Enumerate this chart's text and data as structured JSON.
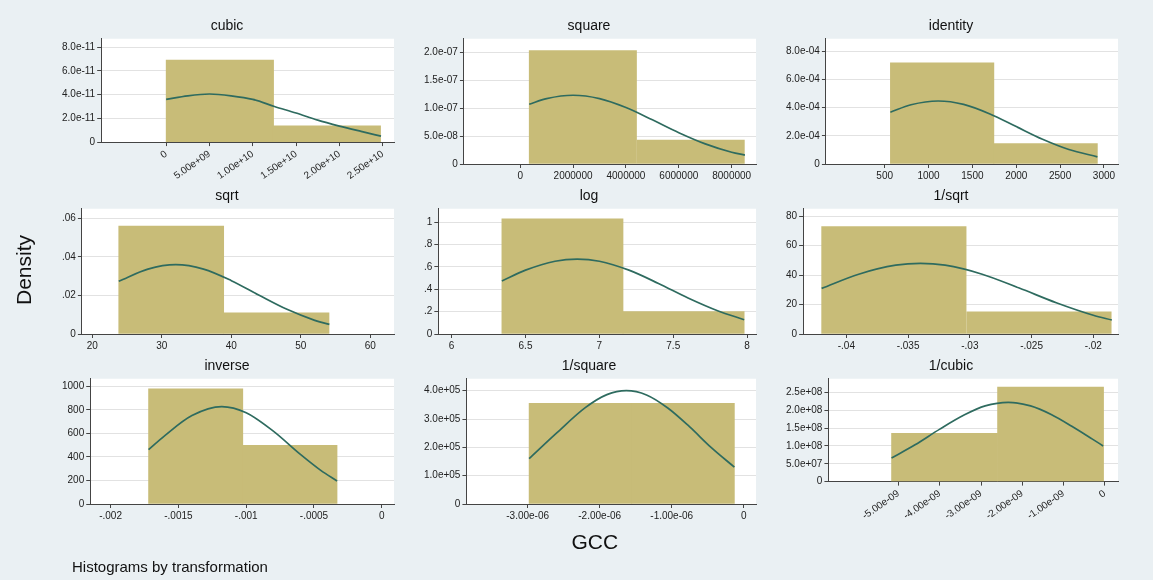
{
  "chart_data": [
    {
      "type": "histogram",
      "title": "cubic",
      "xlim": [
        -7500000000.0,
        26300000000.0
      ],
      "ylim": [
        0,
        8.7e-11
      ],
      "xticks": [
        0,
        {
          "value": 5000000000.0,
          "label": "5.00e+09"
        },
        {
          "value": 10000000000.0,
          "label": "1.00e+10"
        },
        {
          "value": 15000000000.0,
          "label": "1.50e+10"
        },
        {
          "value": 20000000000.0,
          "label": "2.00e+10"
        },
        {
          "value": 25000000000.0,
          "label": "2.50e+10"
        }
      ],
      "yticks": [
        0,
        {
          "value": 2e-11,
          "label": "2.0e-11"
        },
        {
          "value": 4e-11,
          "label": "4.0e-11"
        },
        {
          "value": 6e-11,
          "label": "6.0e-11"
        },
        {
          "value": 8e-11,
          "label": "8.0e-11"
        }
      ],
      "grid": "y",
      "series": [
        {
          "color": "#c8bc78",
          "bins": [
            0,
            12400000000.0,
            24700000000.0
          ],
          "values": [
            6.9e-11,
            1.37e-11
          ]
        },
        {
          "type": "line",
          "color": "#2e6b5f",
          "x": [
            0,
            2500000000.0,
            5000000000.0,
            7500000000.0,
            10000000000.0,
            12500000000.0,
            15000000000.0,
            17500000000.0,
            20000000000.0,
            22500000000.0,
            24800000000.0
          ],
          "values": [
            3.6e-11,
            3.9e-11,
            4.05e-11,
            3.9e-11,
            3.6e-11,
            3e-11,
            2.45e-11,
            1.85e-11,
            1.35e-11,
            9e-12,
            5e-12
          ]
        }
      ]
    },
    {
      "type": "histogram",
      "title": "square",
      "xlim": [
        -2130000.0,
        8920000.0
      ],
      "ylim": [
        0,
        2.24e-07
      ],
      "xticks": [
        0,
        2000000,
        4000000,
        6000000,
        8000000
      ],
      "yticks": [
        0,
        {
          "value": 5e-08,
          "label": "5.0e-08"
        },
        {
          "value": 1e-07,
          "label": "1.0e-07"
        },
        {
          "value": 1.5e-07,
          "label": "1.5e-07"
        },
        {
          "value": 2e-07,
          "label": "2.0e-07"
        }
      ],
      "grid": "y",
      "series": [
        {
          "color": "#c8bc78",
          "bins": [
            340000,
            4400000,
            8500000
          ],
          "values": [
            2.03e-07,
            4.3e-08
          ]
        },
        {
          "type": "line",
          "color": "#2e6b5f",
          "x": [
            340000,
            1000000,
            2000000,
            3000000,
            4000000,
            5000000,
            6000000,
            7000000,
            8000000,
            8500000
          ],
          "values": [
            1.07e-07,
            1.17e-07,
            1.23e-07,
            1.17e-07,
            1.01e-07,
            7.9e-08,
            5.6e-08,
            3.6e-08,
            2.1e-08,
            1.6e-08
          ]
        }
      ]
    },
    {
      "type": "histogram",
      "title": "identity",
      "xlim": [
        -170,
        3160
      ],
      "ylim": [
        0,
        0.00089
      ],
      "xticks": [
        500,
        1000,
        1500,
        2000,
        2500,
        3000
      ],
      "yticks": [
        0,
        {
          "value": 0.0002,
          "label": "2.0e-04"
        },
        {
          "value": 0.0004,
          "label": "4.0e-04"
        },
        {
          "value": 0.0006,
          "label": "6.0e-04"
        },
        {
          "value": 0.0008,
          "label": "8.0e-04"
        }
      ],
      "grid": "y",
      "series": [
        {
          "color": "#c8bc78",
          "bins": [
            565,
            1745,
            2925
          ],
          "values": [
            0.00072,
            0.000145
          ]
        },
        {
          "type": "line",
          "color": "#2e6b5f",
          "x": [
            565,
            800,
            1110,
            1400,
            1700,
            2000,
            2300,
            2600,
            2925
          ],
          "values": [
            0.000368,
            0.000421,
            0.000448,
            0.000424,
            0.000356,
            0.000266,
            0.000176,
            0.000103,
            5.1e-05
          ]
        }
      ]
    },
    {
      "type": "histogram",
      "title": "sqrt",
      "ylabel": "Density",
      "xlim": [
        18.5,
        63.4
      ],
      "ylim": [
        0,
        0.065
      ],
      "xticks": [
        20,
        30,
        40,
        50,
        60
      ],
      "yticks": [
        0,
        {
          "value": 0.02,
          "label": ".02"
        },
        {
          "value": 0.04,
          "label": ".04"
        },
        {
          "value": 0.06,
          "label": ".06"
        }
      ],
      "grid": "y",
      "series": [
        {
          "color": "#c8bc78",
          "bins": [
            23.8,
            38.9,
            54.1
          ],
          "values": [
            0.056,
            0.011
          ]
        },
        {
          "type": "line",
          "color": "#2e6b5f",
          "x": [
            23.8,
            28,
            32,
            36,
            40,
            44,
            48,
            52,
            54.1
          ],
          "values": [
            0.0274,
            0.0337,
            0.036,
            0.0337,
            0.0277,
            0.0201,
            0.0128,
            0.0071,
            0.005
          ]
        }
      ]
    },
    {
      "type": "histogram",
      "title": "log",
      "xlim": [
        5.91,
        8.06
      ],
      "ylim": [
        0,
        1.12
      ],
      "xticks": [
        6,
        6.5,
        7,
        7.5,
        8
      ],
      "yticks": [
        0,
        {
          "value": 0.2,
          "label": ".2"
        },
        {
          "value": 0.4,
          "label": ".4"
        },
        {
          "value": 0.6,
          "label": ".6"
        },
        {
          "value": 0.8,
          "label": ".8"
        },
        1
      ],
      "grid": "y",
      "series": [
        {
          "color": "#c8bc78",
          "bins": [
            6.34,
            7.16,
            7.98
          ],
          "values": [
            1.03,
            0.2
          ]
        },
        {
          "type": "line",
          "color": "#2e6b5f",
          "x": [
            6.34,
            6.5,
            6.7,
            6.85,
            7.0,
            7.2,
            7.4,
            7.6,
            7.8,
            7.98
          ],
          "values": [
            0.475,
            0.571,
            0.651,
            0.67,
            0.651,
            0.571,
            0.452,
            0.322,
            0.208,
            0.128
          ]
        }
      ]
    },
    {
      "type": "histogram",
      "title": "1/sqrt",
      "xlim": [
        -0.0435,
        -0.018
      ],
      "ylim": [
        0,
        85
      ],
      "xticks": [
        {
          "value": -0.04,
          "label": "-.04"
        },
        {
          "value": -0.035,
          "label": "-.035"
        },
        {
          "value": -0.03,
          "label": "-.03"
        },
        {
          "value": -0.025,
          "label": "-.025"
        },
        {
          "value": -0.02,
          "label": "-.02"
        }
      ],
      "yticks": [
        0,
        20,
        40,
        60,
        80
      ],
      "grid": "y",
      "series": [
        {
          "color": "#c8bc78",
          "bins": [
            -0.042,
            -0.0303,
            -0.0185
          ],
          "values": [
            73,
            15
          ]
        },
        {
          "type": "line",
          "color": "#2e6b5f",
          "x": [
            -0.042,
            -0.039,
            -0.036,
            -0.034,
            -0.032,
            -0.029,
            -0.026,
            -0.023,
            -0.02,
            -0.0185
          ],
          "values": [
            31,
            40.6,
            46.7,
            48,
            46.7,
            40.6,
            31.2,
            21.2,
            12.7,
            9.5
          ]
        }
      ]
    },
    {
      "type": "histogram",
      "title": "inverse",
      "annotations": [
        "Histograms by transformation"
      ],
      "xlim": [
        -0.00215,
        9e-05
      ],
      "ylim": [
        0,
        1065
      ],
      "xticks": [
        {
          "value": -0.002,
          "label": "-.002"
        },
        {
          "value": -0.0015,
          "label": "-.0015"
        },
        {
          "value": -0.001,
          "label": "-.001"
        },
        {
          "value": -0.0005,
          "label": "-.0005"
        },
        0
      ],
      "yticks": [
        0,
        200,
        400,
        600,
        800,
        1000
      ],
      "grid": "y",
      "series": [
        {
          "color": "#c8bc78",
          "bins": [
            -0.00172,
            -0.001025,
            -0.00033
          ],
          "values": [
            980,
            500
          ]
        },
        {
          "type": "line",
          "color": "#2e6b5f",
          "x": [
            -0.00172,
            -0.0016,
            -0.0014,
            -0.00118,
            -0.001,
            -0.0008,
            -0.0006,
            -0.00045,
            -0.00033
          ],
          "values": [
            462,
            582,
            752,
            828,
            776,
            620,
            422,
            286,
            195
          ]
        }
      ]
    },
    {
      "type": "histogram",
      "title": "1/square",
      "xlabel": "GCC",
      "xlim": [
        -3.85e-06,
        1.7e-07
      ],
      "ylim": [
        0,
        442000.0
      ],
      "xticks": [
        {
          "value": -3e-06,
          "label": "-3.00e-06"
        },
        {
          "value": -2e-06,
          "label": "-2.00e-06"
        },
        {
          "value": -1e-06,
          "label": "-1.00e-06"
        },
        0
      ],
      "yticks": [
        0,
        {
          "value": 100000.0,
          "label": "1.0e+05"
        },
        {
          "value": 200000.0,
          "label": "2.0e+05"
        },
        {
          "value": 300000.0,
          "label": "3.0e+05"
        },
        {
          "value": 400000.0,
          "label": "4.0e+05"
        }
      ],
      "grid": "y",
      "series": [
        {
          "color": "#c8bc78",
          "bins": [
            -2.98e-06,
            -1.555e-06,
            -1.3e-07
          ],
          "values": [
            355000.0,
            355000.0
          ]
        },
        {
          "type": "line",
          "color": "#2e6b5f",
          "x": [
            -2.98e-06,
            -2.6e-06,
            -2.2e-06,
            -1.9e-06,
            -1.63e-06,
            -1.35e-06,
            -1.05e-06,
            -7.5e-07,
            -4.5e-07,
            -1.3e-07
          ],
          "values": [
            160000.0,
            250000.0,
            340000.0,
            386000.0,
            400000.0,
            385000.0,
            338000.0,
            272000.0,
            199000.0,
            130000.0
          ]
        }
      ]
    },
    {
      "type": "histogram",
      "title": "1/cubic",
      "xlim": [
        -6.7e-09,
        3.2e-10
      ],
      "ylim": [
        0,
        288000000.0
      ],
      "xticks": [
        {
          "value": -5e-09,
          "label": "-5.00e-09"
        },
        {
          "value": -4e-09,
          "label": "-4.00e-09"
        },
        {
          "value": -3e-09,
          "label": "-3.00e-09"
        },
        {
          "value": -2e-09,
          "label": "-2.00e-09"
        },
        {
          "value": -1e-09,
          "label": "-1.00e-09"
        },
        0
      ],
      "yticks": [
        0,
        {
          "value": 50000000.0,
          "label": "5.0e+07"
        },
        {
          "value": 100000000.0,
          "label": "1.0e+08"
        },
        {
          "value": 150000000.0,
          "label": "1.5e+08"
        },
        {
          "value": 200000000.0,
          "label": "2.0e+08"
        },
        {
          "value": 250000000.0,
          "label": "2.5e+08"
        }
      ],
      "grid": "y",
      "series": [
        {
          "color": "#c8bc78",
          "bins": [
            -5.17e-09,
            -2.6e-09,
            -3e-11
          ],
          "values": [
            135000000.0,
            265000000.0
          ]
        },
        {
          "type": "line",
          "color": "#2e6b5f",
          "x": [
            -5.17e-09,
            -4.6e-09,
            -4e-09,
            -3.4e-09,
            -2.9e-09,
            -2.34e-09,
            -1.8e-09,
            -1.3e-09,
            -8e-10,
            -3e-10,
            -4e-11
          ],
          "values": [
            66000000.0,
            103000000.0,
            147000000.0,
            187000000.0,
            212000000.0,
            222000000.0,
            212000000.0,
            188000000.0,
            155000000.0,
            119000000.0,
            100000000.0
          ]
        }
      ]
    }
  ]
}
